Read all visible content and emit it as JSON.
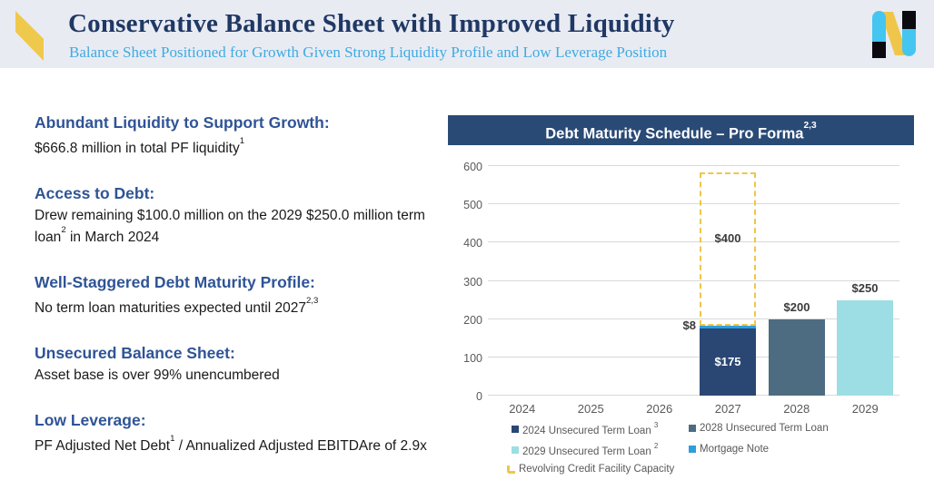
{
  "header": {
    "title": "Conservative Balance Sheet with Improved Liquidity",
    "subtitle": "Balance Sheet Positioned for Growth Given Strong Liquidity Profile and Low Leverage Position",
    "logo_icon": "netstreit-n-logo"
  },
  "colors": {
    "header_bg": "#E9EBF3",
    "accent_yellow": "#EFC94C",
    "title_navy": "#1F3864",
    "subtitle_blue": "#3FABE0",
    "heading_blue": "#2F5496",
    "chart_bar_header": "#2A4A76",
    "grid_gray": "#D9D9D9",
    "axis_text": "#595959"
  },
  "sections": [
    {
      "heading": "Abundant Liquidity to Support Growth:",
      "body": "$666.8 million in total PF liquidity^1"
    },
    {
      "heading": "Access to Debt:",
      "body": "Drew remaining $100.0 million on the 2029 $250.0 million term loan^2 in March 2024"
    },
    {
      "heading": "Well-Staggered Debt Maturity Profile:",
      "body": "No term loan maturities expected until 2027^2,3"
    },
    {
      "heading": "Unsecured Balance Sheet:",
      "body": "Asset base is over 99% unencumbered"
    },
    {
      "heading": "Low Leverage:",
      "body": "PF Adjusted Net Debt^1 / Annualized Adjusted EBITDAre of 2.9x"
    }
  ],
  "chart_data": {
    "type": "bar",
    "title": "Debt Maturity Schedule – Pro Forma^2,3",
    "x": [
      "2024",
      "2025",
      "2026",
      "2027",
      "2028",
      "2029"
    ],
    "ylim": [
      0,
      600
    ],
    "y_ticks": [
      0,
      100,
      200,
      300,
      400,
      500,
      600
    ],
    "grid": true,
    "legend_position": "bottom",
    "series": [
      {
        "name": "2024 Unsecured Term Loan ^3",
        "color": "#2A4673",
        "style": "solid",
        "values": [
          0,
          0,
          0,
          175,
          0,
          0
        ],
        "label": "$175"
      },
      {
        "name": "2028 Unsecured Term Loan",
        "color": "#4D6C82",
        "style": "solid",
        "values": [
          0,
          0,
          0,
          0,
          200,
          0
        ],
        "label": "$200"
      },
      {
        "name": "2029 Unsecured Term Loan ^2",
        "color": "#9CDEE3",
        "style": "solid",
        "values": [
          0,
          0,
          0,
          0,
          0,
          250
        ],
        "label": "$250"
      },
      {
        "name": "Mortgage Note",
        "color": "#2D9FDB",
        "style": "solid",
        "values": [
          0,
          0,
          0,
          8,
          0,
          0
        ],
        "label": "$8"
      },
      {
        "name": "Revolving Credit Facility Capacity",
        "color": "#EFC64A",
        "style": "dashed-outline",
        "values": [
          0,
          0,
          0,
          400,
          0,
          0
        ],
        "label": "$400"
      }
    ]
  }
}
